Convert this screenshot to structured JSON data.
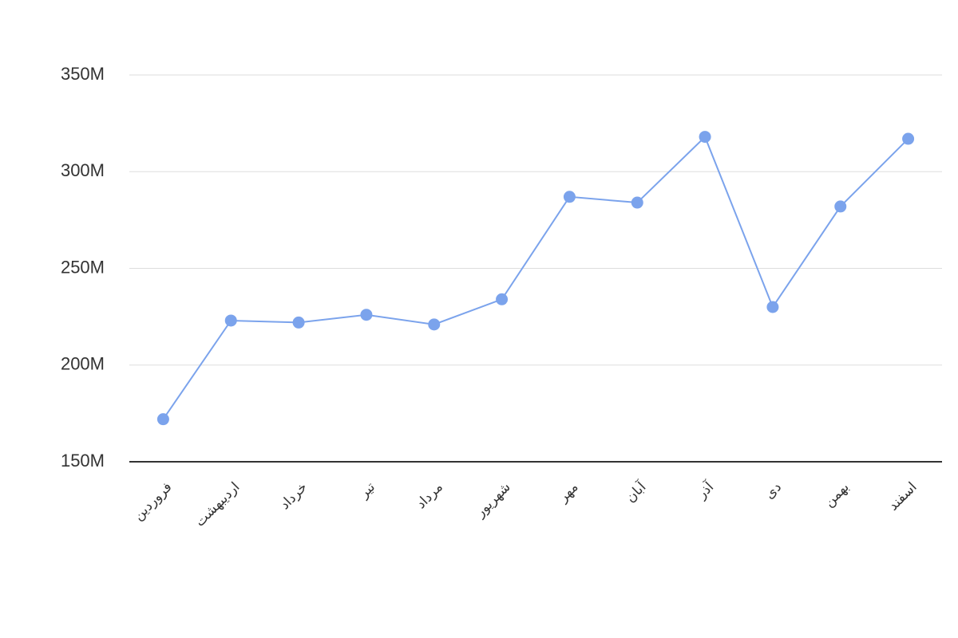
{
  "chart_data": {
    "type": "line",
    "categories": [
      "فروردین",
      "اردیبهشت",
      "خرداد",
      "تیر",
      "مرداد",
      "شهریور",
      "مهر",
      "آبان",
      "آذر",
      "دی",
      "بهمن",
      "اسفند"
    ],
    "series": [
      {
        "color": "#7ba3ec",
        "values": [
          172000000,
          223000000,
          222000000,
          226000000,
          221000000,
          234000000,
          287000000,
          284000000,
          318000000,
          230000000,
          282000000,
          317000000
        ]
      }
    ],
    "ylim": [
      150000000,
      350000000
    ],
    "yticks": [
      {
        "value": 150000000,
        "label": "150M"
      },
      {
        "value": 200000000,
        "label": "200M"
      },
      {
        "value": 250000000,
        "label": "250M"
      },
      {
        "value": 300000000,
        "label": "300M"
      },
      {
        "value": 350000000,
        "label": "350M"
      }
    ],
    "grid": true
  }
}
